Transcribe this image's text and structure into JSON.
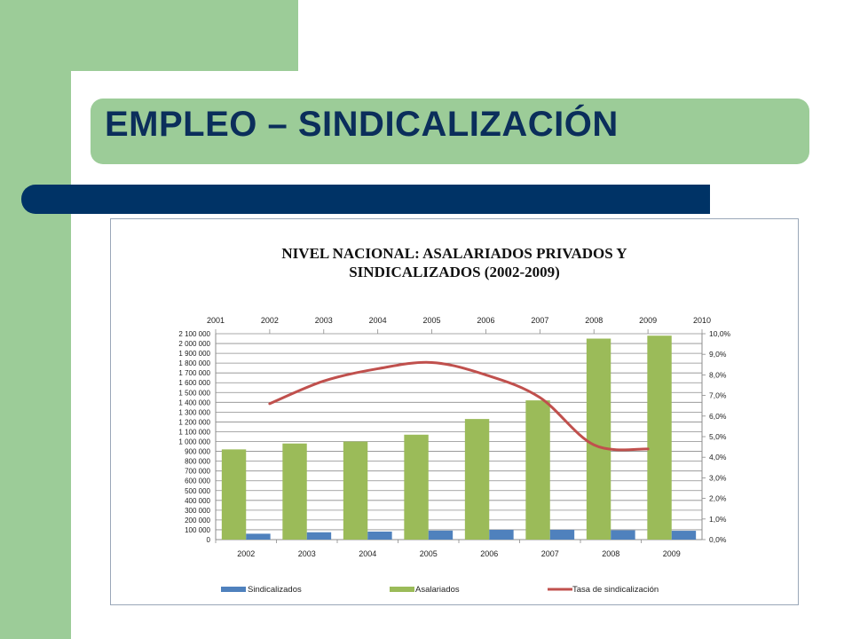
{
  "slide": {
    "title": "EMPLEO – SINDICALIZACIÓN"
  },
  "colors": {
    "green": "#9ccc98",
    "navy": "#003366",
    "title_text": "#0b2e5b",
    "sindicalizados": "#4f81bd",
    "asalariados": "#9bbb59",
    "tasa": "#c0504d"
  },
  "chart_data": {
    "type": "bar",
    "title_line1": "NIVEL NACIONAL: ASALARIADOS PRIVADOS Y",
    "title_line2": "SINDICALIZADOS (2002-2009)",
    "categories": [
      "2002",
      "2003",
      "2004",
      "2005",
      "2006",
      "2007",
      "2008",
      "2009"
    ],
    "top_axis_labels": [
      "2001",
      "2002",
      "2003",
      "2004",
      "2005",
      "2006",
      "2007",
      "2008",
      "2009",
      "2010"
    ],
    "y_left_ticks": [
      "0",
      "100 000",
      "200 000",
      "300 000",
      "400 000",
      "500 000",
      "600 000",
      "700 000",
      "800 000",
      "900 000",
      "1 000 000",
      "1 100 000",
      "1 200 000",
      "1 300 000",
      "1 400 000",
      "1 500 000",
      "1 600 000",
      "1 700 000",
      "1 800 000",
      "1 900 000",
      "2 000 000",
      "2 100 000"
    ],
    "y_right_ticks": [
      "0,0%",
      "1,0%",
      "2,0%",
      "3,0%",
      "4,0%",
      "5,0%",
      "6,0%",
      "7,0%",
      "8,0%",
      "9,0%",
      "10,0%"
    ],
    "ylim_left": [
      0,
      2100000
    ],
    "ylim_right": [
      0,
      10
    ],
    "xlim_top": [
      2001,
      2010
    ],
    "series": [
      {
        "name": "Sindicalizados",
        "type": "bar",
        "axis": "left",
        "values": [
          60000,
          75000,
          82000,
          92000,
          100000,
          100000,
          95000,
          90000
        ]
      },
      {
        "name": "Asalariados",
        "type": "bar",
        "axis": "left",
        "values": [
          920000,
          980000,
          1000000,
          1070000,
          1230000,
          1420000,
          2050000,
          2080000
        ]
      },
      {
        "name": "Tasa de sindicalización",
        "type": "line",
        "axis": "right",
        "x": [
          2002,
          2003,
          2004,
          2005,
          2006,
          2007,
          2008,
          2009
        ],
        "values": [
          6.6,
          7.7,
          8.3,
          8.6,
          8.0,
          6.9,
          4.6,
          4.4
        ]
      }
    ],
    "legend_position": "bottom",
    "grid": true
  }
}
